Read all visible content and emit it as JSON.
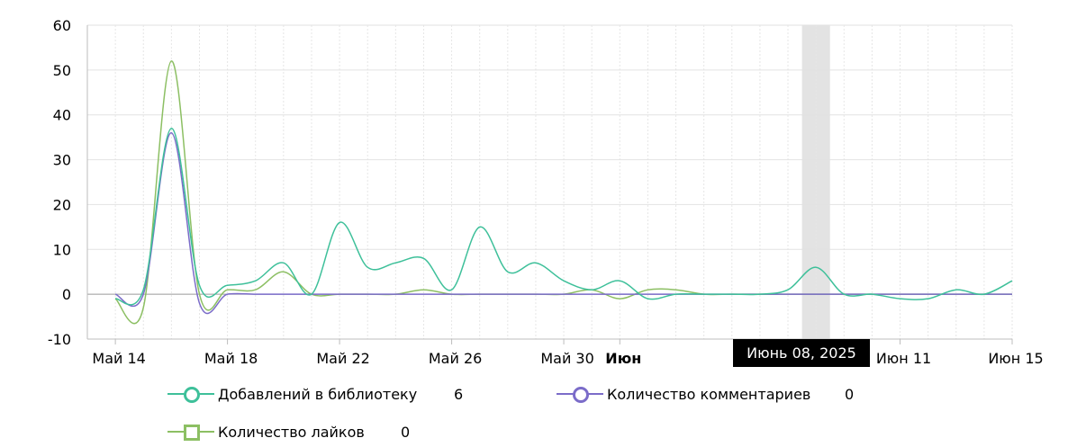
{
  "chart_data": {
    "type": "line",
    "ylim": [
      -10,
      60
    ],
    "yticks": [
      "-10",
      "0",
      "10",
      "20",
      "30",
      "40",
      "50",
      "60"
    ],
    "xlim": [
      "2025-05-13",
      "2025-06-15"
    ],
    "xticks": [
      {
        "date": "2025-05-14",
        "label": "Май 14",
        "bold": false
      },
      {
        "date": "2025-05-18",
        "label": "Май 18",
        "bold": false
      },
      {
        "date": "2025-05-22",
        "label": "Май 22",
        "bold": false
      },
      {
        "date": "2025-05-26",
        "label": "Май 26",
        "bold": false
      },
      {
        "date": "2025-05-30",
        "label": "Май 30",
        "bold": false
      },
      {
        "date": "2025-06-01",
        "label": "Июн",
        "bold": true
      },
      {
        "date": "2025-06-11",
        "label": "Июн 11",
        "bold": false
      },
      {
        "date": "2025-06-15",
        "label": "Июн 15",
        "bold": false
      }
    ],
    "grid": true,
    "highlight_date": "2025-06-08",
    "x": [
      "2025-05-14",
      "2025-05-15",
      "2025-05-16",
      "2025-05-17",
      "2025-05-18",
      "2025-05-19",
      "2025-05-20",
      "2025-05-21",
      "2025-05-22",
      "2025-05-23",
      "2025-05-24",
      "2025-05-25",
      "2025-05-26",
      "2025-05-27",
      "2025-05-28",
      "2025-05-29",
      "2025-05-30",
      "2025-05-31",
      "2025-06-01",
      "2025-06-02",
      "2025-06-03",
      "2025-06-04",
      "2025-06-05",
      "2025-06-06",
      "2025-06-07",
      "2025-06-08",
      "2025-06-09",
      "2025-06-10",
      "2025-06-11",
      "2025-06-12",
      "2025-06-13",
      "2025-06-14",
      "2025-06-15"
    ],
    "series": [
      {
        "name": "Добавлений в библиотеку",
        "color": "#3ec09a",
        "marker": "circle",
        "values": [
          -1,
          1,
          37,
          2,
          2,
          3,
          7,
          0,
          16,
          6,
          7,
          8,
          1,
          15,
          5,
          7,
          3,
          1,
          3,
          -1,
          0,
          0,
          0,
          0,
          1,
          6,
          0,
          0,
          -1,
          -1,
          1,
          0,
          3
        ]
      },
      {
        "name": "Количество комментариев",
        "color": "#7b6cc9",
        "marker": "circle",
        "values": [
          0,
          0,
          36,
          -2,
          0,
          0,
          0,
          0,
          0,
          0,
          0,
          0,
          0,
          0,
          0,
          0,
          0,
          0,
          0,
          0,
          0,
          0,
          0,
          0,
          0,
          0,
          0,
          0,
          0,
          0,
          0,
          0,
          0
        ]
      },
      {
        "name": "Количество лайков",
        "color": "#8cbf63",
        "marker": "square",
        "values": [
          -1,
          -3,
          52,
          0,
          1,
          1,
          5,
          0,
          0,
          0,
          0,
          1,
          0,
          0,
          0,
          0,
          0,
          1,
          -1,
          1,
          1,
          0,
          0,
          0,
          0,
          0,
          0,
          0,
          0,
          0,
          0,
          0,
          0
        ]
      }
    ]
  },
  "tooltip": {
    "text": "Июнь 08, 2025"
  },
  "legend": [
    {
      "label": "Добавлений в библиотеку",
      "value": "6"
    },
    {
      "label": "Количество комментариев",
      "value": "0"
    },
    {
      "label": "Количество лайков",
      "value": "0"
    }
  ]
}
